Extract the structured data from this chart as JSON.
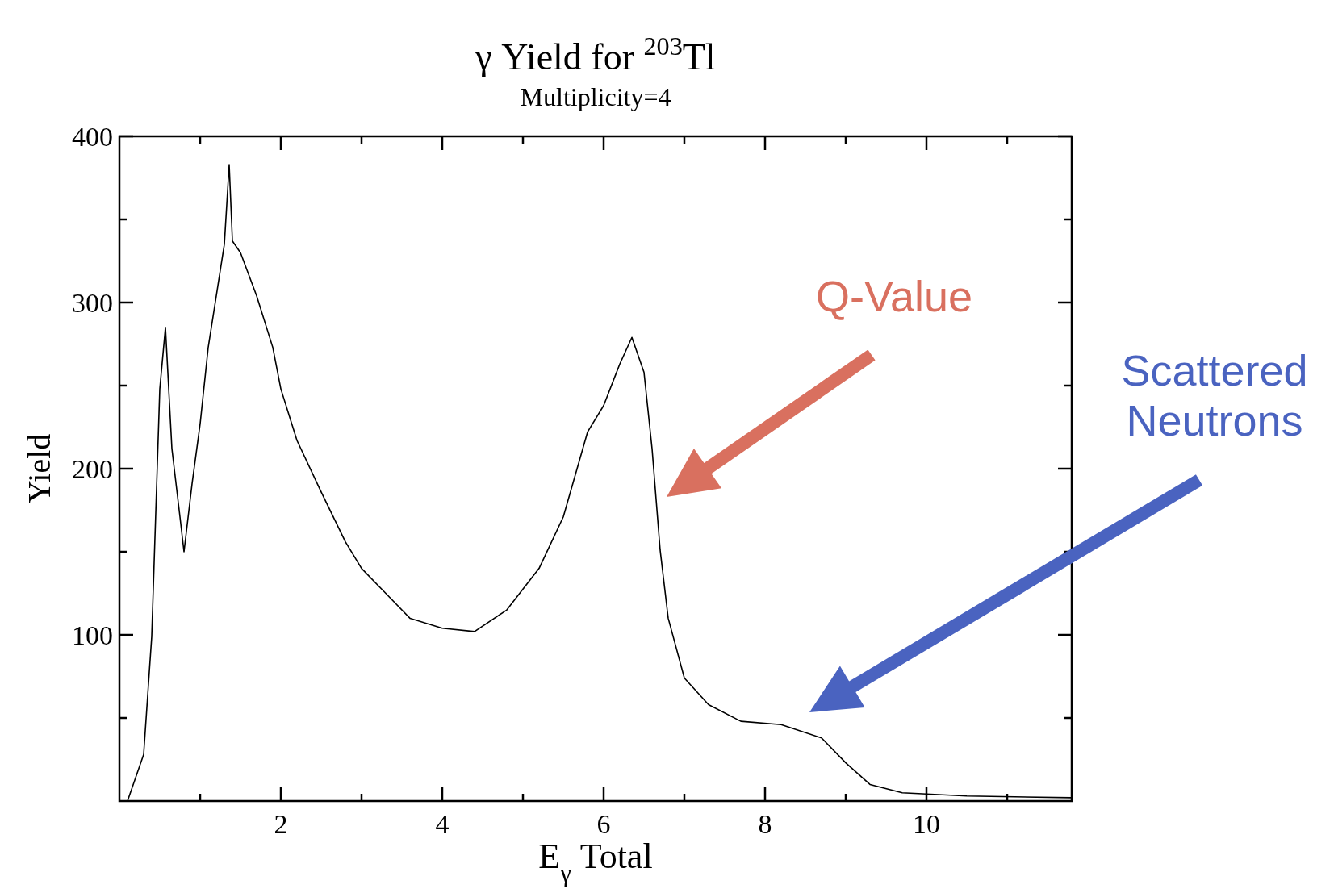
{
  "chart_data": {
    "type": "line",
    "title": "γ Yield for $^{203}$Tl",
    "subtitle": "Multiplicity=4",
    "xlabel": "E$_{γ}$ Total",
    "ylabel": "Yield",
    "xlim": [
      0,
      11.8
    ],
    "ylim": [
      0,
      400
    ],
    "xticks": [
      {
        "value": 1,
        "label": null
      },
      2,
      {
        "value": 3,
        "label": null
      },
      4,
      {
        "value": 5,
        "label": null
      },
      6,
      {
        "value": 7,
        "label": null
      },
      8,
      {
        "value": 9,
        "label": null
      },
      10,
      {
        "value": 11,
        "label": null
      }
    ],
    "yticks": [
      {
        "value": 50,
        "label": null
      },
      100,
      {
        "value": 150,
        "label": null
      },
      200,
      {
        "value": 250,
        "label": null
      },
      300,
      {
        "value": 350,
        "label": null
      },
      400
    ],
    "grid": false,
    "line_style": "solid",
    "annotations": [
      "Q-Value",
      "Scattered Neutrons"
    ],
    "series": [
      {
        "color": "#000000",
        "x": [
          0.1,
          0.3,
          0.4,
          0.5,
          0.57,
          0.65,
          0.75,
          0.8,
          0.9,
          1.0,
          1.1,
          1.2,
          1.3,
          1.36,
          1.4,
          1.5,
          1.7,
          1.9,
          2.0,
          2.2,
          2.5,
          2.8,
          3.0,
          3.3,
          3.6,
          4.0,
          4.4,
          4.8,
          5.2,
          5.5,
          5.8,
          6.0,
          6.2,
          6.35,
          6.5,
          6.6,
          6.7,
          6.8,
          7.0,
          7.3,
          7.7,
          8.2,
          8.7,
          9.0,
          9.3,
          9.7,
          10.5,
          11.8
        ],
        "values": [
          0,
          28,
          99,
          248,
          285,
          212,
          171,
          150,
          191,
          227,
          273,
          304,
          335,
          383,
          337,
          330,
          304,
          273,
          248,
          217,
          186,
          156,
          140,
          125,
          110,
          104,
          102,
          115,
          140,
          171,
          222,
          238,
          263,
          279,
          258,
          212,
          151,
          110,
          74,
          58,
          48,
          46,
          38,
          23,
          10,
          5,
          3,
          2
        ]
      }
    ]
  }
}
